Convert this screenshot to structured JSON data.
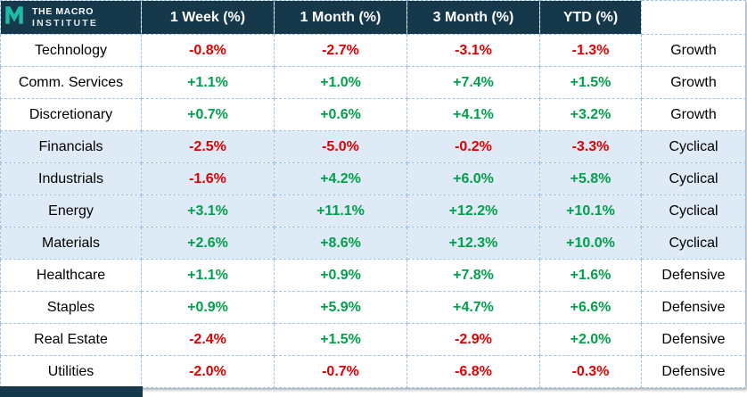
{
  "brand": {
    "line1": "THE MACRO",
    "line2": "INSTITUTE",
    "logo_icon": "macro-institute-m-logo",
    "logo_color": "#1FB9A5"
  },
  "colors": {
    "header_bg": "#15394B",
    "positive": "#00A14B",
    "negative": "#E00000",
    "shaded_row": "#DEEAF6",
    "grid_border": "#9DC3E6"
  },
  "chart_data": {
    "type": "table",
    "columns": [
      "1 Week (%)",
      "1 Month (%)",
      "3 Month (%)",
      "YTD (%)"
    ],
    "rows": [
      {
        "sector": "Technology",
        "values": [
          "-0.8%",
          "-2.7%",
          "-3.1%",
          "-1.3%"
        ],
        "category": "Growth",
        "shaded": false
      },
      {
        "sector": "Comm. Services",
        "values": [
          "+1.1%",
          "+1.0%",
          "+7.4%",
          "+1.5%"
        ],
        "category": "Growth",
        "shaded": false
      },
      {
        "sector": "Discretionary",
        "values": [
          "+0.7%",
          "+0.6%",
          "+4.1%",
          "+3.2%"
        ],
        "category": "Growth",
        "shaded": false
      },
      {
        "sector": "Financials",
        "values": [
          "-2.5%",
          "-5.0%",
          "-0.2%",
          "-3.3%"
        ],
        "category": "Cyclical",
        "shaded": true
      },
      {
        "sector": "Industrials",
        "values": [
          "-1.6%",
          "+4.2%",
          "+6.0%",
          "+5.8%"
        ],
        "category": "Cyclical",
        "shaded": true
      },
      {
        "sector": "Energy",
        "values": [
          "+3.1%",
          "+11.1%",
          "+12.2%",
          "+10.1%"
        ],
        "category": "Cyclical",
        "shaded": true
      },
      {
        "sector": "Materials",
        "values": [
          "+2.6%",
          "+8.6%",
          "+12.3%",
          "+10.0%"
        ],
        "category": "Cyclical",
        "shaded": true
      },
      {
        "sector": "Healthcare",
        "values": [
          "+1.1%",
          "+0.9%",
          "+7.8%",
          "+1.6%"
        ],
        "category": "Defensive",
        "shaded": false
      },
      {
        "sector": "Staples",
        "values": [
          "+0.9%",
          "+5.9%",
          "+4.7%",
          "+6.6%"
        ],
        "category": "Defensive",
        "shaded": false
      },
      {
        "sector": "Real Estate",
        "values": [
          "-2.4%",
          "+1.5%",
          "-2.9%",
          "+2.0%"
        ],
        "category": "Defensive",
        "shaded": false
      },
      {
        "sector": "Utilities",
        "values": [
          "-2.0%",
          "-0.7%",
          "-6.8%",
          "-0.3%"
        ],
        "category": "Defensive",
        "shaded": false
      }
    ]
  }
}
